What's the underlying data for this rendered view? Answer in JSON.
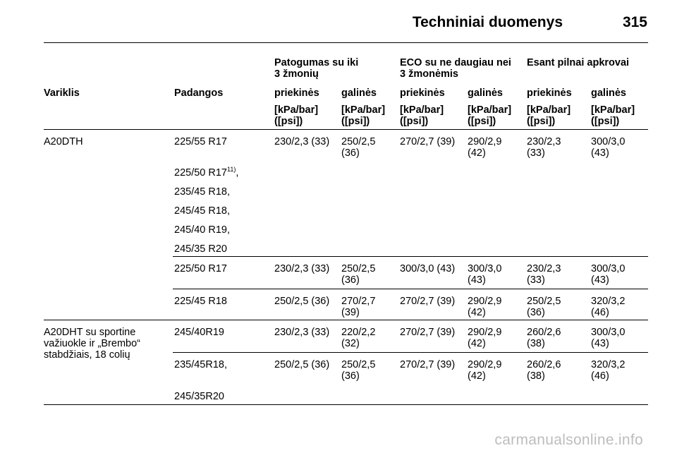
{
  "page": {
    "title": "Techniniai duomenys",
    "number": "315",
    "watermark": "carmanualsonline.info"
  },
  "table": {
    "group_headers": [
      "Patogumas su iki\n3 žmonių",
      "ECO su ne daugiau nei\n3 žmonėmis",
      "Esant pilnai apkrovai"
    ],
    "col_engine": "Variklis",
    "col_tyres": "Padangos",
    "col_front": "priekinės",
    "col_rear": "galinės",
    "unit": "[kPa/bar]\n([psi])",
    "rows": [
      {
        "engine": "A20DTH",
        "tyres": "225/55 R17",
        "values": [
          "230/2,3 (33)",
          "250/2,5\n(36)",
          "270/2,7 (39)",
          "290/2,9\n(42)",
          "230/2,3\n(33)",
          "300/3,0\n(43)"
        ]
      },
      {
        "tyres_list": [
          "225/50 R17",
          "235/45 R18,",
          "245/45 R18,",
          "245/40 R19,",
          "245/35 R20"
        ],
        "footnote": "11)",
        "footnote_suffix": ","
      },
      {
        "tyres": "225/50 R17",
        "values": [
          "230/2,3 (33)",
          "250/2,5\n(36)",
          "300/3,0 (43)",
          "300/3,0\n(43)",
          "230/2,3\n(33)",
          "300/3,0\n(43)"
        ]
      },
      {
        "tyres": "225/45 R18",
        "values": [
          "250/2,5 (36)",
          "270/2,7\n(39)",
          "270/2,7 (39)",
          "290/2,9\n(42)",
          "250/2,5\n(36)",
          "320/3,2\n(46)"
        ]
      },
      {
        "engine": "A20DHT su sportine\nvažiuokle ir „Brembo“\nstabdžiais, 18 colių",
        "tyres": "245/40R19",
        "values": [
          "230/2,3 (33)",
          "220/2,2\n(32)",
          "270/2,7 (39)",
          "290/2,9\n(42)",
          "260/2,6\n(38)",
          "300/3,0\n(43)"
        ]
      },
      {
        "tyres": "235/45R18,",
        "tyres_extra": "245/35R20",
        "values": [
          "250/2,5 (36)",
          "250/2,5\n(36)",
          "270/2,7 (39)",
          "290/2,9\n(42)",
          "260/2,6\n(38)",
          "320/3,2\n(46)"
        ]
      }
    ]
  }
}
